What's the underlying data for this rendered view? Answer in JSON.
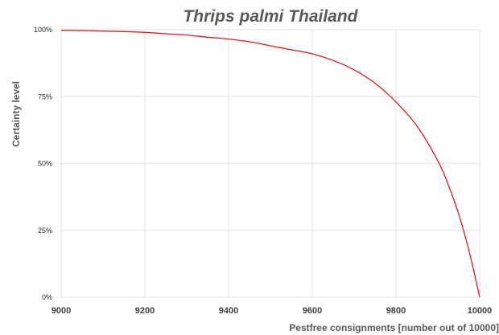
{
  "chart_data": {
    "type": "line",
    "title": "Thrips palmi Thailand",
    "xlabel": "Pestfree consignments [number out of 10000]",
    "ylabel": "Certainty level",
    "xlim": [
      9000,
      10000
    ],
    "ylim": [
      0,
      1
    ],
    "x_ticks": [
      "9000",
      "9200",
      "9400",
      "9600",
      "9800",
      "10000"
    ],
    "y_ticks": [
      "0%",
      "25%",
      "50%",
      "75%",
      "100%"
    ],
    "grid": true,
    "legend": "none",
    "series": [
      {
        "color": "#e31a1c",
        "x": [
          9000,
          9050,
          9100,
          9150,
          9200,
          9250,
          9300,
          9350,
          9400,
          9450,
          9500,
          9550,
          9600,
          9650,
          9700,
          9750,
          9800,
          9850,
          9900,
          9925,
          9950,
          9975,
          10000
        ],
        "y": [
          0.998,
          0.997,
          0.995,
          0.993,
          0.99,
          0.985,
          0.98,
          0.972,
          0.965,
          0.955,
          0.94,
          0.925,
          0.91,
          0.885,
          0.85,
          0.8,
          0.73,
          0.64,
          0.51,
          0.42,
          0.31,
          0.17,
          0.0
        ]
      }
    ]
  }
}
